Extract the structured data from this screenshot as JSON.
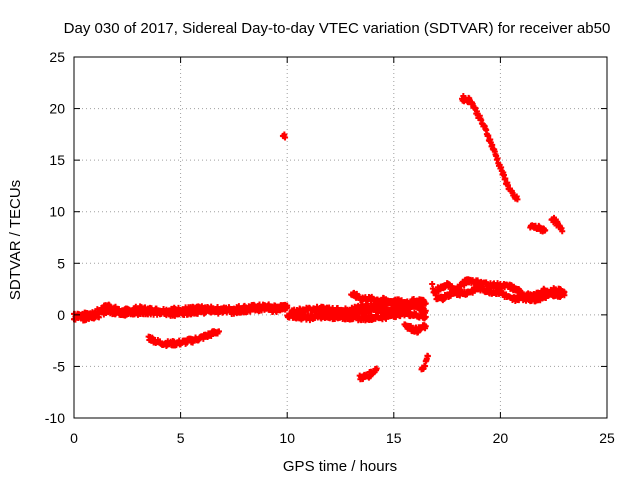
{
  "chart_data": {
    "type": "scatter",
    "title": "Day 030 of 2017, Sidereal Day-to-day VTEC variation (SDTVAR) for receiver ab50",
    "xlabel": "GPS time / hours",
    "ylabel": "SDTVAR / TECUs",
    "xlim": [
      0,
      25
    ],
    "ylim": [
      -10,
      25
    ],
    "xticks": [
      0,
      5,
      10,
      15,
      20,
      25
    ],
    "yticks": [
      -10,
      -5,
      0,
      5,
      10,
      15,
      20,
      25
    ],
    "grid": true,
    "marker_color": "#ff0000",
    "segments": [
      [
        [
          0.0,
          0.1
        ],
        [
          0.5,
          -0.4
        ],
        [
          1.0,
          0.2
        ],
        [
          1.6,
          0.9
        ],
        [
          2.2,
          0.3
        ],
        [
          3.0,
          0.6
        ],
        [
          4.0,
          0.4
        ],
        [
          5.0,
          0.5
        ],
        [
          6.0,
          0.6
        ],
        [
          7.0,
          0.5
        ],
        [
          8.0,
          0.7
        ],
        [
          9.0,
          0.8
        ],
        [
          10.0,
          0.7
        ]
      ],
      [
        [
          0.0,
          -0.3
        ],
        [
          0.5,
          0.2
        ],
        [
          1.0,
          -0.2
        ],
        [
          1.5,
          0.4
        ],
        [
          2.5,
          0.1
        ],
        [
          3.5,
          0.3
        ],
        [
          4.5,
          0.1
        ],
        [
          5.5,
          0.3
        ],
        [
          6.5,
          0.4
        ],
        [
          7.5,
          0.3
        ],
        [
          8.5,
          0.6
        ],
        [
          9.5,
          0.5
        ],
        [
          10.0,
          0.9
        ]
      ],
      [
        [
          3.5,
          -2.2
        ],
        [
          4.0,
          -2.7
        ],
        [
          4.5,
          -2.8
        ],
        [
          5.0,
          -2.7
        ],
        [
          5.5,
          -2.5
        ],
        [
          6.0,
          -2.2
        ],
        [
          6.5,
          -1.8
        ],
        [
          6.8,
          -1.6
        ]
      ],
      [
        [
          9.8,
          17.4
        ],
        [
          9.9,
          17.2
        ]
      ],
      [
        [
          10.2,
          0.2
        ],
        [
          11.0,
          0.6
        ],
        [
          12.0,
          0.5
        ],
        [
          13.0,
          0.3
        ],
        [
          14.0,
          0.4
        ],
        [
          15.0,
          0.5
        ],
        [
          16.0,
          0.9
        ],
        [
          16.5,
          1.1
        ]
      ],
      [
        [
          10.0,
          0.0
        ],
        [
          11.0,
          -0.3
        ],
        [
          12.0,
          0.1
        ],
        [
          13.0,
          0.5
        ],
        [
          14.0,
          0.9
        ],
        [
          15.0,
          1.2
        ],
        [
          16.0,
          0.8
        ],
        [
          16.5,
          0.4
        ]
      ],
      [
        [
          11.5,
          -0.1
        ],
        [
          12.5,
          -0.2
        ],
        [
          13.5,
          -0.3
        ],
        [
          14.5,
          -0.2
        ],
        [
          15.5,
          0.2
        ],
        [
          16.5,
          -0.2
        ]
      ],
      [
        [
          13.0,
          2.0
        ],
        [
          13.5,
          1.6
        ],
        [
          14.5,
          1.4
        ],
        [
          15.5,
          1.2
        ],
        [
          16.4,
          1.4
        ]
      ],
      [
        [
          13.4,
          -6.1
        ],
        [
          13.8,
          -5.9
        ],
        [
          14.2,
          -5.2
        ]
      ],
      [
        [
          15.5,
          -0.9
        ],
        [
          15.8,
          -1.3
        ],
        [
          16.1,
          -1.5
        ],
        [
          16.5,
          -1.1
        ]
      ],
      [
        [
          16.3,
          -5.5
        ],
        [
          16.5,
          -4.6
        ],
        [
          16.6,
          -4.0
        ]
      ],
      [
        [
          16.8,
          2.8
        ],
        [
          17.0,
          1.5
        ],
        [
          17.5,
          1.8
        ],
        [
          18.0,
          2.6
        ],
        [
          18.5,
          3.4
        ],
        [
          19.0,
          3.1
        ],
        [
          19.5,
          2.9
        ],
        [
          20.0,
          2.8
        ],
        [
          20.5,
          2.7
        ],
        [
          21.0,
          2.1
        ],
        [
          21.5,
          1.7
        ],
        [
          22.0,
          2.3
        ],
        [
          22.5,
          2.0
        ],
        [
          23.0,
          1.9
        ]
      ],
      [
        [
          17.0,
          2.4
        ],
        [
          17.5,
          2.9
        ],
        [
          18.0,
          2.1
        ],
        [
          18.5,
          2.2
        ],
        [
          19.0,
          2.6
        ],
        [
          19.5,
          2.3
        ],
        [
          20.0,
          2.2
        ],
        [
          20.5,
          1.5
        ],
        [
          21.0,
          1.7
        ],
        [
          21.5,
          1.5
        ],
        [
          22.0,
          1.7
        ],
        [
          22.5,
          2.4
        ],
        [
          23.0,
          2.2
        ]
      ],
      [
        [
          18.2,
          21.0
        ],
        [
          18.6,
          20.8
        ],
        [
          19.0,
          19.2
        ],
        [
          19.4,
          17.5
        ],
        [
          19.8,
          15.4
        ],
        [
          20.2,
          13.2
        ],
        [
          20.6,
          11.5
        ],
        [
          20.8,
          11.2
        ]
      ],
      [
        [
          21.4,
          8.6
        ],
        [
          21.8,
          8.4
        ],
        [
          22.1,
          8.2
        ]
      ],
      [
        [
          22.4,
          9.4
        ],
        [
          22.6,
          9.0
        ],
        [
          22.9,
          8.1
        ]
      ]
    ]
  }
}
